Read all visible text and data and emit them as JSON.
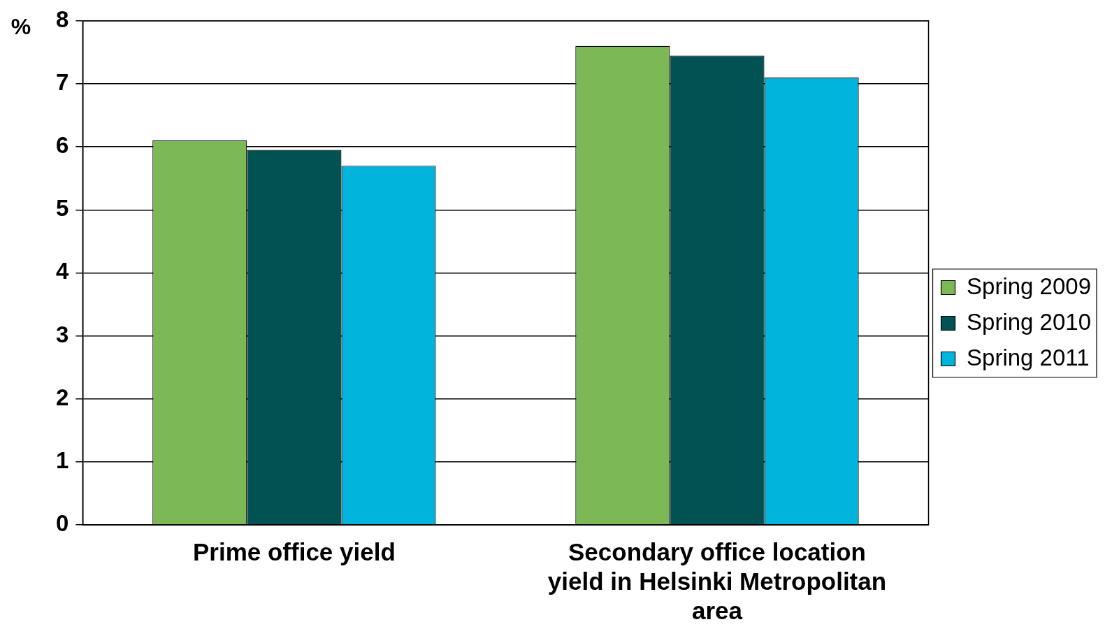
{
  "chart_data": {
    "type": "bar",
    "ylabel": "%",
    "categories": [
      "Prime office yield",
      "Secondary office location yield in Helsinki Metropolitan area"
    ],
    "series": [
      {
        "name": "Spring 2009",
        "color": "#7db856",
        "values": [
          6.1,
          7.6
        ]
      },
      {
        "name": "Spring 2010",
        "color": "#015253",
        "values": [
          5.95,
          7.45
        ]
      },
      {
        "name": "Spring 2011",
        "color": "#00b4dc",
        "values": [
          5.7,
          7.1
        ]
      }
    ],
    "ylim": [
      0,
      8
    ],
    "yticks": [
      0,
      1,
      2,
      3,
      4,
      5,
      6,
      7,
      8
    ],
    "grid": "y",
    "legend": "right"
  }
}
